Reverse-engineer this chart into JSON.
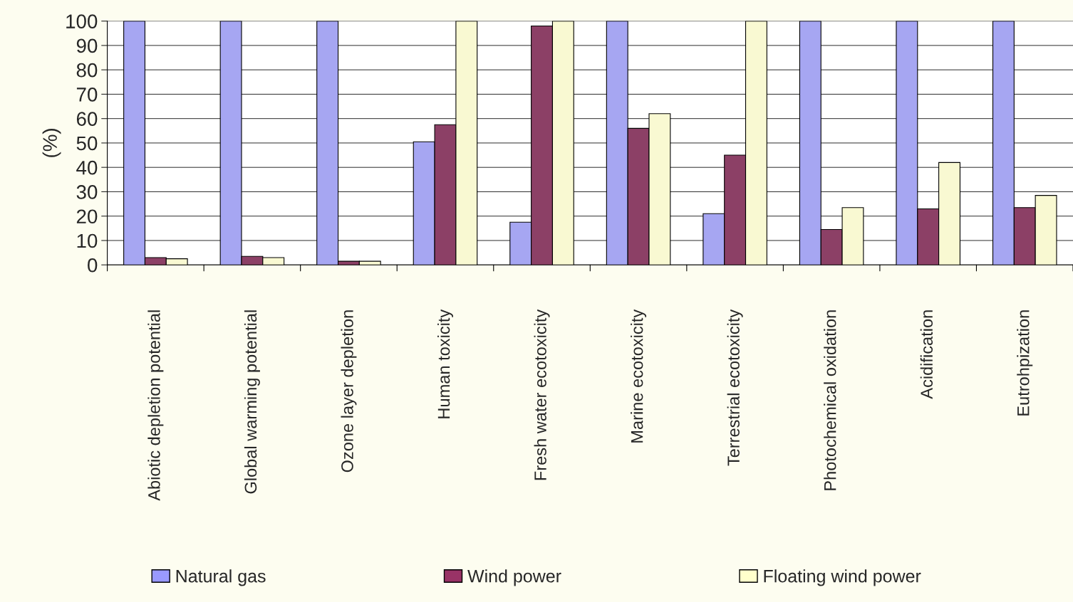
{
  "chart_data": {
    "type": "bar",
    "ylabel": "(%)",
    "categories": [
      "Abiotic depletion potential",
      "Global warming potential",
      "Ozone layer depletion",
      "Human toxicity",
      "Fresh water ecotoxicity",
      "Marine ecotoxicity",
      "Terrestrial ecotoxicity",
      "Photochemical oxidation",
      "Acidification",
      "Eutrohpization"
    ],
    "series": [
      {
        "name": "Natural gas",
        "color": "#9999ff",
        "values": [
          100,
          100,
          100,
          50.5,
          17.5,
          100,
          21,
          100,
          100,
          100
        ]
      },
      {
        "name": "Wind power",
        "color": "#993366",
        "values": [
          3,
          3.5,
          1.5,
          57.5,
          98,
          56,
          45,
          14.5,
          23,
          23.5
        ]
      },
      {
        "name": "Floating wind power",
        "color": "#ffffcc",
        "values": [
          2.5,
          3,
          1.5,
          100,
          100,
          62,
          100,
          23.5,
          42,
          28.5
        ]
      }
    ],
    "ylim": [
      0,
      100
    ],
    "yticks": [
      0,
      10,
      20,
      30,
      40,
      50,
      60,
      70,
      80,
      90,
      100
    ],
    "grid": "y",
    "legend": "bottom"
  }
}
